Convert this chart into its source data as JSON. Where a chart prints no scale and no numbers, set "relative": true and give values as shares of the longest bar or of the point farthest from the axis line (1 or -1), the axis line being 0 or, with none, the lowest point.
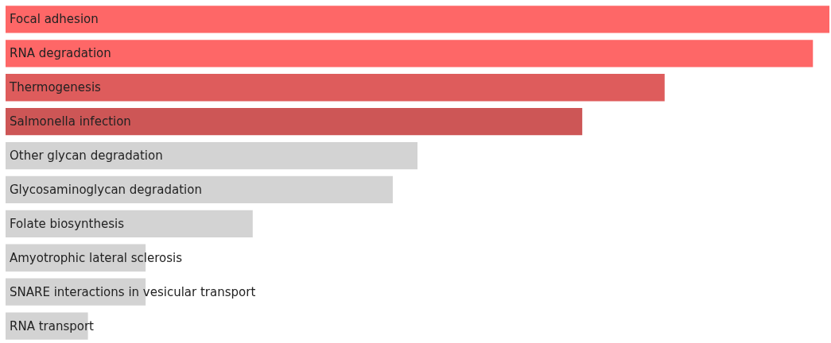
{
  "chart_data": {
    "type": "bar",
    "orientation": "horizontal",
    "relative": true,
    "categories": [
      "Focal adhesion",
      "RNA degradation",
      "Thermogenesis",
      "Salmonella infection",
      "Other glycan degradation",
      "Glycosaminoglycan degradation",
      "Folate biosynthesis",
      "Amyotrophic lateral sclerosis",
      "SNARE interactions in vesicular transport",
      "RNA transport"
    ],
    "values": [
      1,
      0.98,
      0.8,
      0.7,
      0.5,
      0.47,
      0.3,
      0.17,
      0.17,
      0.1
    ],
    "colors": [
      "#fe6767",
      "#fe6767",
      "#de5c5c",
      "#cd5656",
      "#d3d3d3",
      "#d3d3d3",
      "#d3d3d3",
      "#d3d3d3",
      "#d3d3d3",
      "#d3d3d3"
    ],
    "grid": false
  }
}
